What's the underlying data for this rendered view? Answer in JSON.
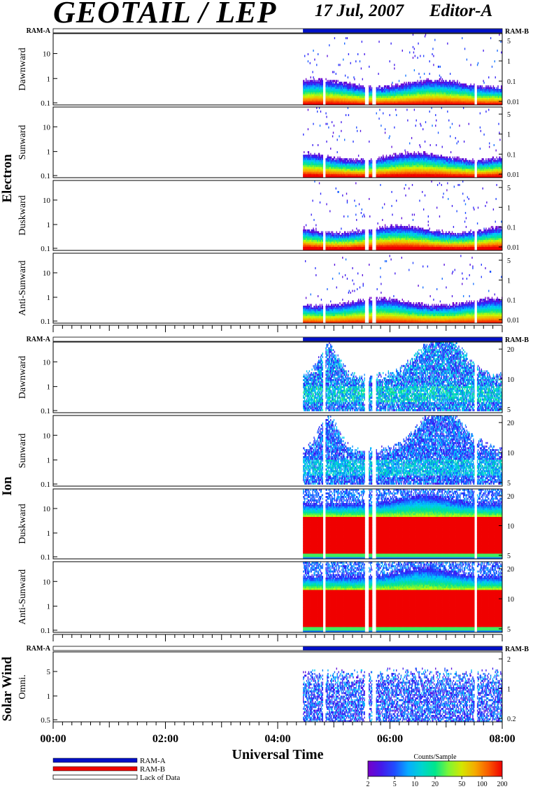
{
  "header": {
    "title": "GEOTAIL / LEP",
    "date": "17 Jul, 2007",
    "editor": "Editor-A"
  },
  "chart_data": {
    "type": "heatmap",
    "xlabel": "Universal Time",
    "x_ticks": [
      "00:00",
      "02:00",
      "04:00",
      "06:00",
      "08:00"
    ],
    "x_range_hours": [
      0,
      8
    ],
    "data_start_hours": 4.45,
    "gap_hours": [
      4.8,
      4.85,
      5.55,
      5.62,
      5.68,
      5.75,
      7.5,
      7.55
    ],
    "ram_bar": {
      "left_label": "RAM-A",
      "right_label": "RAM-B"
    },
    "legend": {
      "ram_a": "RAM-A",
      "ram_b": "RAM-B",
      "lack": "Lack of Data",
      "colors": {
        "ram_a": "#0010c8",
        "ram_b": "#ee0000",
        "lack": "#ffffff"
      }
    },
    "colorbar": {
      "title": "Counts/Sample",
      "ticks": [
        "2",
        "5",
        "10",
        "20",
        "50",
        "100",
        "200"
      ]
    },
    "groups": [
      {
        "label": "Electron",
        "right_ticks": [
          "5",
          "1",
          "0.1",
          "0.01"
        ],
        "panels": [
          {
            "label": "Dawnward",
            "y_ticks": [
              "10",
              "1",
              "0.1"
            ],
            "mode": "electron",
            "intensity": 1.0
          },
          {
            "label": "Sunward",
            "y_ticks": [
              "10",
              "1",
              "0.1"
            ],
            "mode": "electron",
            "intensity": 1.05
          },
          {
            "label": "Duskward",
            "y_ticks": [
              "10",
              "1",
              "0.1"
            ],
            "mode": "electron",
            "intensity": 1.1
          },
          {
            "label": "Anti-Sunward",
            "y_ticks": [
              "10",
              "1",
              "0.1"
            ],
            "mode": "electron",
            "intensity": 0.95
          }
        ]
      },
      {
        "label": "Ion",
        "right_ticks": [
          "20",
          "10",
          "5"
        ],
        "panels": [
          {
            "label": "Dawnward",
            "y_ticks": [
              "10",
              "1",
              "0.1"
            ],
            "mode": "ion_weak",
            "intensity": 1.0
          },
          {
            "label": "Sunward",
            "y_ticks": [
              "10",
              "1",
              "0.1"
            ],
            "mode": "ion_weak",
            "intensity": 0.8
          },
          {
            "label": "Duskward",
            "y_ticks": [
              "10",
              "1",
              "0.1"
            ],
            "mode": "ion_strong",
            "intensity": 1.0
          },
          {
            "label": "Anti-Sunward",
            "y_ticks": [
              "10",
              "1",
              "0.1"
            ],
            "mode": "ion_strong",
            "intensity": 1.0
          }
        ]
      },
      {
        "label": "Solar Wind",
        "right_ticks": [
          "2",
          "1",
          "0.2"
        ],
        "panels": [
          {
            "label": "Omni.",
            "y_ticks": [
              "5",
              "1",
              "0.5"
            ],
            "mode": "solar",
            "intensity": 1.0
          }
        ]
      }
    ]
  }
}
